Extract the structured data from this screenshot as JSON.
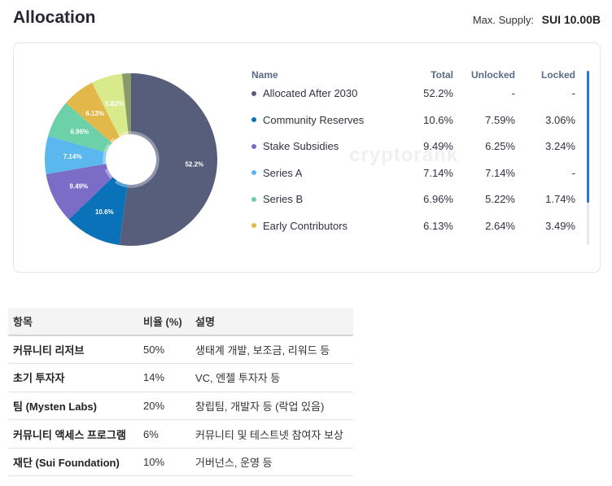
{
  "header": {
    "title": "Allocation",
    "supply_label": "Max. Supply:",
    "supply_value": "SUI 10.00B"
  },
  "watermark": "cryptorank",
  "legend_table": {
    "headers": {
      "name": "Name",
      "total": "Total",
      "unlocked": "Unlocked",
      "locked": "Locked"
    },
    "rows": [
      {
        "name": "Allocated After 2030",
        "total": "52.2%",
        "unlocked": "-",
        "locked": "-",
        "color": "#565e7c"
      },
      {
        "name": "Community Reserves",
        "total": "10.6%",
        "unlocked": "7.59%",
        "locked": "3.06%",
        "color": "#0a72b8"
      },
      {
        "name": "Stake Subsidies",
        "total": "9.49%",
        "unlocked": "6.25%",
        "locked": "3.24%",
        "color": "#7b6cc7"
      },
      {
        "name": "Series A",
        "total": "7.14%",
        "unlocked": "7.14%",
        "locked": "-",
        "color": "#5ab8ee"
      },
      {
        "name": "Series B",
        "total": "6.96%",
        "unlocked": "5.22%",
        "locked": "1.74%",
        "color": "#6cd0a9"
      },
      {
        "name": "Early Contributors",
        "total": "6.13%",
        "unlocked": "2.64%",
        "locked": "3.49%",
        "color": "#e2b84a"
      }
    ]
  },
  "chart_data": {
    "type": "pie",
    "donut": true,
    "series": [
      {
        "name": "Allocated After 2030",
        "value": 52.2,
        "unlocked": null,
        "locked": null,
        "label": "52.2%",
        "color": "#565e7c"
      },
      {
        "name": "Community Reserves",
        "value": 10.6,
        "unlocked": 7.59,
        "locked": 3.06,
        "label": "10.6%",
        "color": "#0a72b8"
      },
      {
        "name": "Stake Subsidies",
        "value": 9.49,
        "unlocked": 6.25,
        "locked": 3.24,
        "label": "9.49%",
        "color": "#7b6cc7"
      },
      {
        "name": "Series A",
        "value": 7.14,
        "unlocked": 7.14,
        "locked": null,
        "label": "7.14%",
        "color": "#5ab8ee"
      },
      {
        "name": "Series B",
        "value": 6.96,
        "unlocked": 5.22,
        "locked": 1.74,
        "label": "6.96%",
        "color": "#6cd0a9"
      },
      {
        "name": "Early Contributors",
        "value": 6.13,
        "unlocked": 2.64,
        "locked": 3.49,
        "label": "6.13%",
        "color": "#e2b84a"
      },
      {
        "name": "",
        "value": 5.82,
        "unlocked": null,
        "locked": null,
        "label": "5.82%",
        "color": "#d9ea8c"
      },
      {
        "name": "",
        "value": 1.66,
        "unlocked": null,
        "locked": null,
        "label": "",
        "color": "#8a9a6c"
      }
    ]
  },
  "korean_table": {
    "headers": [
      "항목",
      "비율 (%)",
      "설명"
    ],
    "rows": [
      {
        "item": "커뮤니티 리저브",
        "ratio": "50%",
        "desc": "생태계 개발, 보조금, 리워드 등"
      },
      {
        "item": "초기 투자자",
        "ratio": "14%",
        "desc": "VC, 엔젤 투자자 등"
      },
      {
        "item": "팀 (Mysten Labs)",
        "ratio": "20%",
        "desc": "창립팀, 개발자 등 (락업 있음)"
      },
      {
        "item": "커뮤니티 액세스 프로그램",
        "ratio": "6%",
        "desc": "커뮤니티 및 테스트넷 참여자 보상"
      },
      {
        "item": "재단 (Sui Foundation)",
        "ratio": "10%",
        "desc": "거버넌스, 운영 등"
      }
    ]
  }
}
